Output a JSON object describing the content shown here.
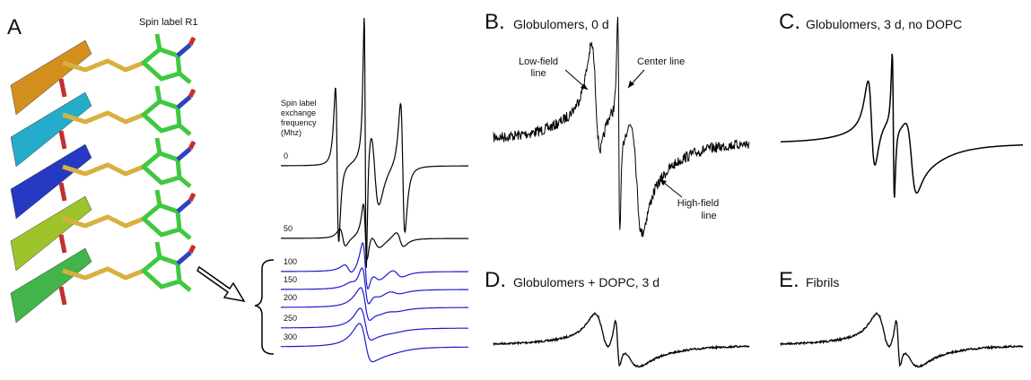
{
  "panel_a": {
    "letter": "A",
    "title": "Spin label R1"
  },
  "simulation": {
    "axis_label": [
      "Spin label",
      "exchange",
      "frequency",
      "(Mhz)"
    ],
    "frequencies": [
      0,
      50,
      100,
      150,
      200,
      250,
      300
    ]
  },
  "panels": [
    {
      "letter": "B.",
      "title": "Globulomers, 0 d",
      "annotations": [
        [
          "Low-field",
          "line"
        ],
        [
          "Center line"
        ],
        [
          "High-field",
          "line"
        ]
      ]
    },
    {
      "letter": "C.",
      "title": "Globulomers, 3 d, no DOPC"
    },
    {
      "letter": "D.",
      "title": "Globulomers + DOPC, 3 d"
    },
    {
      "letter": "E.",
      "title": "Fibrils"
    }
  ]
}
